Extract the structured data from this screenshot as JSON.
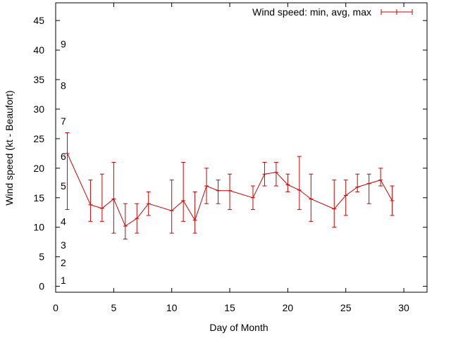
{
  "chart_data": {
    "type": "line",
    "xlabel": "Day of Month",
    "ylabel": "Wind speed (kt - Beaufort)",
    "xlim": [
      0,
      32
    ],
    "ylim": [
      -1,
      48
    ],
    "x_ticks": [
      0,
      5,
      10,
      15,
      20,
      25,
      30
    ],
    "y_ticks": [
      0,
      5,
      10,
      15,
      20,
      25,
      30,
      35,
      40,
      45
    ],
    "grid": false,
    "legend_position": "top-right",
    "series_color": "#cc0000",
    "series": [
      {
        "name": "Wind speed: min, avg, max",
        "x": [
          1,
          3,
          4,
          5,
          6,
          7,
          8,
          10,
          11,
          12,
          13,
          14,
          15,
          17,
          18,
          19,
          20,
          21,
          22,
          24,
          25,
          26,
          27,
          28,
          29
        ],
        "avg": [
          22.5,
          13.8,
          13.2,
          14.8,
          10.2,
          11.5,
          14.0,
          12.8,
          14.5,
          11.2,
          17.0,
          16.2,
          16.2,
          15.0,
          19.0,
          19.3,
          17.2,
          16.3,
          14.8,
          13.1,
          15.4,
          16.8,
          17.4,
          18.0,
          14.5
        ],
        "min": [
          13,
          11,
          11,
          9,
          8,
          9,
          12,
          9,
          11,
          9,
          14,
          14,
          13,
          13,
          17,
          17,
          16,
          13,
          11,
          10,
          12,
          16,
          14,
          17,
          12
        ],
        "max": [
          26,
          18,
          19,
          21,
          14,
          14,
          16,
          18,
          21,
          16,
          20,
          18,
          19,
          17,
          21,
          21,
          19,
          22,
          19,
          18,
          18,
          19,
          19,
          20,
          17
        ]
      }
    ],
    "beaufort_labels": [
      {
        "label": "1",
        "y": 1
      },
      {
        "label": "2",
        "y": 4
      },
      {
        "label": "3",
        "y": 7
      },
      {
        "label": "4",
        "y": 11
      },
      {
        "label": "5",
        "y": 17
      },
      {
        "label": "6",
        "y": 22
      },
      {
        "label": "7",
        "y": 28
      },
      {
        "label": "8",
        "y": 34
      },
      {
        "label": "9",
        "y": 41
      }
    ]
  }
}
